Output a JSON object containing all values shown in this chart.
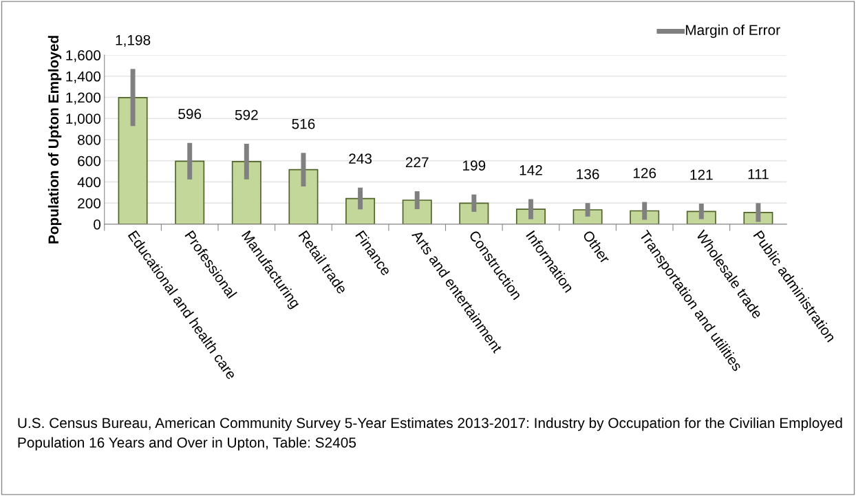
{
  "chart_data": {
    "type": "bar",
    "ylabel": "Population of Upton Employed",
    "categories": [
      "Educational and health care",
      "Professional",
      "Manufacturing",
      "Retail trade",
      "Finance",
      "Arts and entertainment",
      "Construction",
      "Information",
      "Other",
      "Transportation and utilities",
      "Wholesale trade",
      "Public administration"
    ],
    "series": [
      {
        "color": "#c4d79b",
        "values": [
          1198,
          596,
          592,
          516,
          243,
          227,
          199,
          142,
          136,
          126,
          121,
          111
        ],
        "errors": [
          270,
          173,
          168,
          159,
          103,
          85,
          82,
          95,
          64,
          84,
          73,
          89
        ]
      }
    ],
    "ylim": [
      0,
      1600
    ],
    "yticks": [
      0,
      200,
      400,
      600,
      800,
      {
        "value": 1000,
        "label": "1,000"
      },
      {
        "value": 1200,
        "label": "1,200"
      },
      {
        "value": 1400,
        "label": "1,400"
      },
      {
        "value": 1600,
        "label": "1,600"
      }
    ],
    "value_labels": [
      "1,198",
      "596",
      "592",
      "516",
      "243",
      "227",
      "199",
      "142",
      "136",
      "126",
      "121",
      "111"
    ],
    "grid": "y",
    "annotations": [
      "Margin of Error",
      "U.S. Census Bureau, American Community Survey 5-Year Estimates 2013-2017: Industry by Occupation for the Civilian Employed Population 16 Years and Over in Upton, Table: S2405"
    ]
  }
}
